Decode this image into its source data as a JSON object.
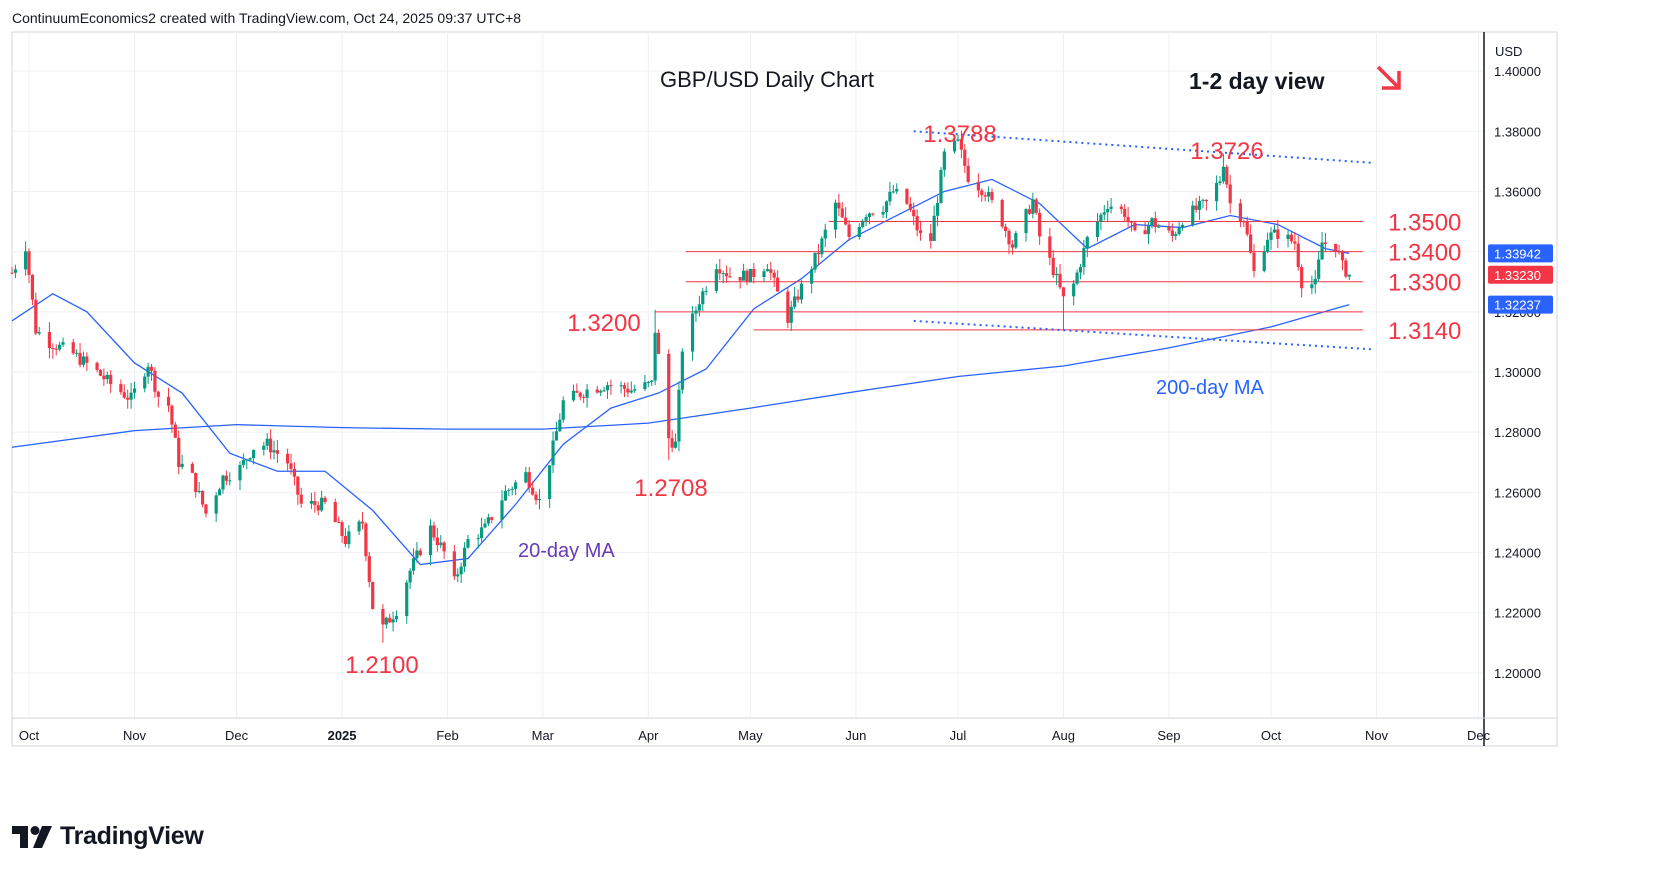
{
  "header": "ContinuumEconomics2 created with TradingView.com, Oct 24, 2025 09:37 UTC+8",
  "brand": {
    "name": "TradingView",
    "logo_icon": "tradingview-logo-icon"
  },
  "colors": {
    "up": "#089981",
    "down": "#f23645",
    "ma20": "#2962ff",
    "ma200": "#2962ff",
    "annotation": "#f23645",
    "ma20_label": "#673ab7",
    "ma200_label": "#2962ff",
    "trendline": "#2962ff",
    "grid": "#eef0f3",
    "last_badge": "#f23645",
    "ma_badge": "#2962ff"
  },
  "chart_data": {
    "type": "candlestick",
    "title": "GBP/USD Daily Chart",
    "subtitle": "1-2 day view",
    "subtitle_arrow": "down-right-arrow-icon",
    "currency": "USD",
    "grid": true,
    "y_axis": {
      "position": "right",
      "range": [
        1.185,
        1.413
      ],
      "ticks": [
        "1.20000",
        "1.22000",
        "1.24000",
        "1.26000",
        "1.28000",
        "1.30000",
        "1.32000",
        "1.34000",
        "1.36000",
        "1.38000",
        "1.40000"
      ],
      "tick_values": [
        1.2,
        1.22,
        1.24,
        1.26,
        1.28,
        1.3,
        1.32,
        1.34,
        1.36,
        1.38,
        1.4
      ]
    },
    "x_axis": {
      "start": "2024-09-26",
      "end": "2025-12-02",
      "ticks": [
        {
          "label": "Oct",
          "date": "2024-10-01",
          "bold": false
        },
        {
          "label": "Nov",
          "date": "2024-11-01",
          "bold": false
        },
        {
          "label": "Dec",
          "date": "2024-12-01",
          "bold": false
        },
        {
          "label": "2025",
          "date": "2025-01-01",
          "bold": true
        },
        {
          "label": "Feb",
          "date": "2025-02-01",
          "bold": false
        },
        {
          "label": "Mar",
          "date": "2025-03-01",
          "bold": false
        },
        {
          "label": "Apr",
          "date": "2025-04-01",
          "bold": false
        },
        {
          "label": "May",
          "date": "2025-05-01",
          "bold": false
        },
        {
          "label": "Jun",
          "date": "2025-06-01",
          "bold": false
        },
        {
          "label": "Jul",
          "date": "2025-07-01",
          "bold": false
        },
        {
          "label": "Aug",
          "date": "2025-08-01",
          "bold": false
        },
        {
          "label": "Sep",
          "date": "2025-09-01",
          "bold": false
        },
        {
          "label": "Oct",
          "date": "2025-10-01",
          "bold": false
        },
        {
          "label": "Nov",
          "date": "2025-11-01",
          "bold": false
        },
        {
          "label": "Dec",
          "date": "2025-12-01",
          "bold": false
        }
      ]
    },
    "price_path": [
      [
        "2024-09-26",
        1.333
      ],
      [
        "2024-09-30",
        1.342
      ],
      [
        "2024-10-03",
        1.314
      ],
      [
        "2024-10-07",
        1.31
      ],
      [
        "2024-10-14",
        1.306
      ],
      [
        "2024-10-21",
        1.3
      ],
      [
        "2024-10-25",
        1.296
      ],
      [
        "2024-10-31",
        1.291
      ],
      [
        "2024-11-05",
        1.303
      ],
      [
        "2024-11-08",
        1.292
      ],
      [
        "2024-11-11",
        1.289
      ],
      [
        "2024-11-14",
        1.27
      ],
      [
        "2024-11-18",
        1.265
      ],
      [
        "2024-11-22",
        1.253
      ],
      [
        "2024-11-27",
        1.265
      ],
      [
        "2024-12-02",
        1.268
      ],
      [
        "2024-12-06",
        1.275
      ],
      [
        "2024-12-10",
        1.276
      ],
      [
        "2024-12-16",
        1.27
      ],
      [
        "2024-12-20",
        1.256
      ],
      [
        "2024-12-27",
        1.256
      ],
      [
        "2025-01-02",
        1.244
      ],
      [
        "2025-01-07",
        1.25
      ],
      [
        "2025-01-10",
        1.222
      ],
      [
        "2025-01-13",
        1.215
      ],
      [
        "2025-01-17",
        1.221
      ],
      [
        "2025-01-21",
        1.234
      ],
      [
        "2025-01-27",
        1.248
      ],
      [
        "2025-01-31",
        1.24
      ],
      [
        "2025-02-03",
        1.23
      ],
      [
        "2025-02-07",
        1.244
      ],
      [
        "2025-02-12",
        1.248
      ],
      [
        "2025-02-18",
        1.26
      ],
      [
        "2025-02-24",
        1.266
      ],
      [
        "2025-02-28",
        1.257
      ],
      [
        "2025-03-04",
        1.275
      ],
      [
        "2025-03-07",
        1.29
      ],
      [
        "2025-03-14",
        1.294
      ],
      [
        "2025-03-20",
        1.296
      ],
      [
        "2025-03-27",
        1.294
      ],
      [
        "2025-04-02",
        1.296
      ],
      [
        "2025-04-03",
        1.314
      ],
      [
        "2025-04-07",
        1.278
      ],
      [
        "2025-04-09",
        1.276
      ],
      [
        "2025-04-11",
        1.308
      ],
      [
        "2025-04-16",
        1.324
      ],
      [
        "2025-04-21",
        1.336
      ],
      [
        "2025-04-25",
        1.332
      ],
      [
        "2025-05-01",
        1.332
      ],
      [
        "2025-05-06",
        1.336
      ],
      [
        "2025-05-09",
        1.326
      ],
      [
        "2025-05-12",
        1.318
      ],
      [
        "2025-05-16",
        1.328
      ],
      [
        "2025-05-21",
        1.34
      ],
      [
        "2025-05-26",
        1.356
      ],
      [
        "2025-05-30",
        1.345
      ],
      [
        "2025-06-04",
        1.353
      ],
      [
        "2025-06-09",
        1.355
      ],
      [
        "2025-06-12",
        1.36
      ],
      [
        "2025-06-16",
        1.356
      ],
      [
        "2025-06-20",
        1.345
      ],
      [
        "2025-06-23",
        1.344
      ],
      [
        "2025-06-27",
        1.372
      ],
      [
        "2025-07-01",
        1.376
      ],
      [
        "2025-07-04",
        1.365
      ],
      [
        "2025-07-09",
        1.36
      ],
      [
        "2025-07-14",
        1.35
      ],
      [
        "2025-07-17",
        1.342
      ],
      [
        "2025-07-23",
        1.357
      ],
      [
        "2025-07-25",
        1.345
      ],
      [
        "2025-07-29",
        1.334
      ],
      [
        "2025-08-01",
        1.324
      ],
      [
        "2025-08-04",
        1.329
      ],
      [
        "2025-08-08",
        1.344
      ],
      [
        "2025-08-14",
        1.356
      ],
      [
        "2025-08-19",
        1.353
      ],
      [
        "2025-08-22",
        1.345
      ],
      [
        "2025-08-27",
        1.35
      ],
      [
        "2025-09-02",
        1.345
      ],
      [
        "2025-09-05",
        1.351
      ],
      [
        "2025-09-09",
        1.354
      ],
      [
        "2025-09-12",
        1.356
      ],
      [
        "2025-09-16",
        1.364
      ],
      [
        "2025-09-17",
        1.37
      ],
      [
        "2025-09-19",
        1.356
      ],
      [
        "2025-09-23",
        1.351
      ],
      [
        "2025-09-26",
        1.333
      ],
      [
        "2025-09-30",
        1.345
      ],
      [
        "2025-10-03",
        1.346
      ],
      [
        "2025-10-08",
        1.343
      ],
      [
        "2025-10-10",
        1.33
      ],
      [
        "2025-10-14",
        1.329
      ],
      [
        "2025-10-16",
        1.343
      ],
      [
        "2025-10-20",
        1.342
      ],
      [
        "2025-10-22",
        1.335
      ],
      [
        "2025-10-24",
        1.3323
      ]
    ],
    "ma20_path": [
      [
        "2024-09-26",
        1.317
      ],
      [
        "2024-10-08",
        1.326
      ],
      [
        "2024-10-18",
        1.32
      ],
      [
        "2024-11-01",
        1.303
      ],
      [
        "2024-11-15",
        1.293
      ],
      [
        "2024-11-29",
        1.273
      ],
      [
        "2024-12-13",
        1.267
      ],
      [
        "2024-12-27",
        1.267
      ],
      [
        "2025-01-10",
        1.254
      ],
      [
        "2025-01-24",
        1.236
      ],
      [
        "2025-02-07",
        1.238
      ],
      [
        "2025-02-21",
        1.256
      ],
      [
        "2025-03-07",
        1.276
      ],
      [
        "2025-03-21",
        1.288
      ],
      [
        "2025-04-04",
        1.293
      ],
      [
        "2025-04-18",
        1.301
      ],
      [
        "2025-05-02",
        1.321
      ],
      [
        "2025-05-16",
        1.331
      ],
      [
        "2025-05-30",
        1.344
      ],
      [
        "2025-06-13",
        1.352
      ],
      [
        "2025-06-27",
        1.36
      ],
      [
        "2025-07-11",
        1.364
      ],
      [
        "2025-07-25",
        1.356
      ],
      [
        "2025-08-08",
        1.341
      ],
      [
        "2025-08-22",
        1.349
      ],
      [
        "2025-09-05",
        1.348
      ],
      [
        "2025-09-19",
        1.352
      ],
      [
        "2025-10-03",
        1.349
      ],
      [
        "2025-10-17",
        1.341
      ],
      [
        "2025-10-24",
        1.3394
      ]
    ],
    "ma200_path": [
      [
        "2024-09-26",
        1.275
      ],
      [
        "2024-11-01",
        1.2805
      ],
      [
        "2024-12-01",
        1.2825
      ],
      [
        "2025-01-01",
        1.2815
      ],
      [
        "2025-02-01",
        1.281
      ],
      [
        "2025-03-01",
        1.281
      ],
      [
        "2025-04-01",
        1.283
      ],
      [
        "2025-05-01",
        1.288
      ],
      [
        "2025-06-01",
        1.2935
      ],
      [
        "2025-07-01",
        1.2985
      ],
      [
        "2025-08-01",
        1.302
      ],
      [
        "2025-09-01",
        1.308
      ],
      [
        "2025-10-01",
        1.315
      ],
      [
        "2025-10-24",
        1.3224
      ]
    ],
    "levels": [
      {
        "label": "1.3500",
        "value": 1.35,
        "from": "2025-05-24",
        "to": "2025-10-28"
      },
      {
        "label": "1.3400",
        "value": 1.34,
        "from": "2025-04-12",
        "to": "2025-10-28"
      },
      {
        "label": "1.3300",
        "value": 1.33,
        "from": "2025-04-12",
        "to": "2025-10-28"
      },
      {
        "label": "1.3140",
        "value": 1.314,
        "from": "2025-05-02",
        "to": "2025-10-28"
      }
    ],
    "level_1_3200": {
      "value": 1.32,
      "from": "2025-04-03",
      "to": "2025-10-28"
    },
    "trendlines": [
      {
        "name": "upper-trendline",
        "from": [
          "2025-06-18",
          1.38
        ],
        "to": [
          "2025-10-31",
          1.3695
        ]
      },
      {
        "name": "lower-trendline",
        "from": [
          "2025-06-18",
          1.317
        ],
        "to": [
          "2025-10-31",
          1.3075
        ]
      }
    ],
    "annotations": [
      {
        "text": "1.3788",
        "type": "high",
        "date": "2025-07-01",
        "value": 1.3788
      },
      {
        "text": "1.3726",
        "type": "high",
        "date": "2025-09-17",
        "value": 1.3726
      },
      {
        "text": "1.3200",
        "type": "level",
        "date": "2025-03-20",
        "value": 1.32
      },
      {
        "text": "1.2708",
        "type": "low",
        "date": "2025-04-07",
        "value": 1.2708
      },
      {
        "text": "1.2100",
        "type": "low",
        "date": "2025-01-13",
        "value": 1.21
      }
    ],
    "ma_labels": {
      "ma20": "20-day MA",
      "ma200": "200-day MA"
    },
    "price_badges": [
      {
        "label": "1.33942",
        "value": 1.33942,
        "kind": "ma20"
      },
      {
        "label": "1.33230",
        "value": 1.3323,
        "kind": "last"
      },
      {
        "label": "1.32237",
        "value": 1.32237,
        "kind": "ma200"
      }
    ]
  }
}
